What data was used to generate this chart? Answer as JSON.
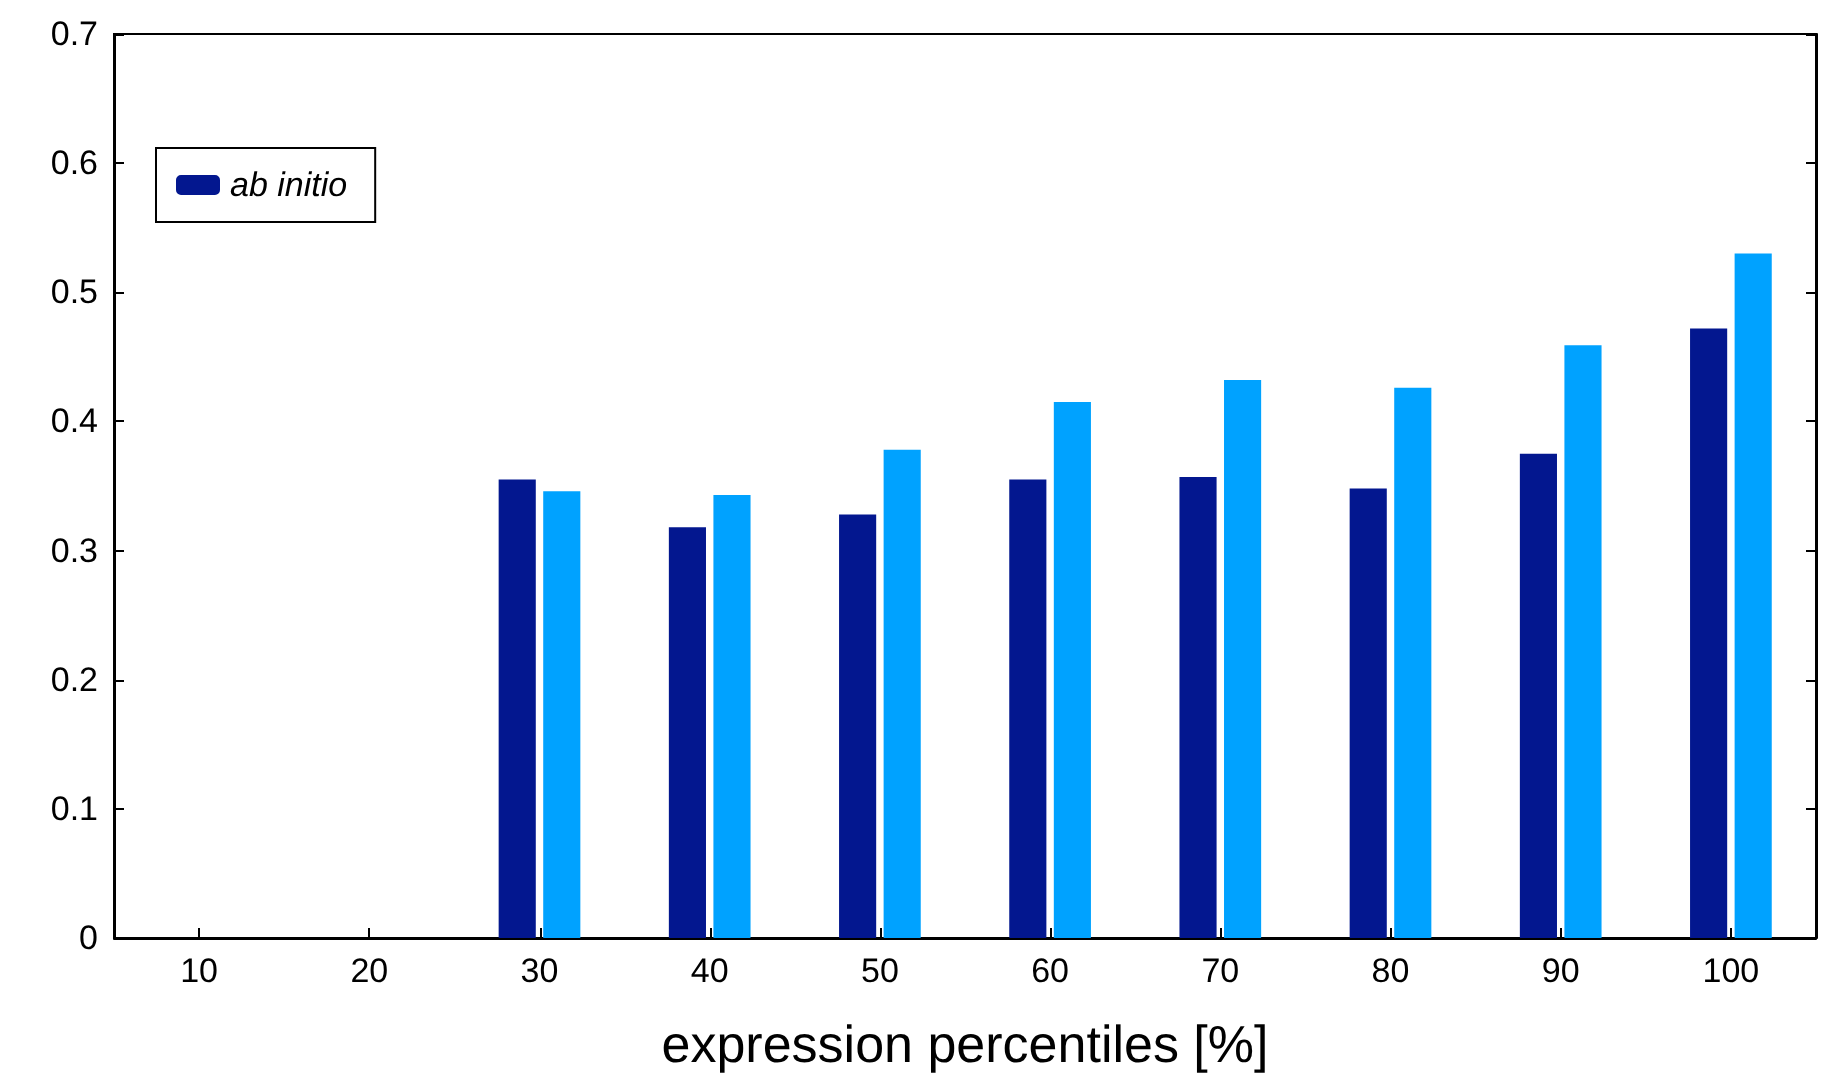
{
  "chart_data": {
    "type": "bar",
    "xlabel": "expression percentiles [%]",
    "categories": [
      "10",
      "20",
      "30",
      "40",
      "50",
      "60",
      "70",
      "80",
      "90",
      "100"
    ],
    "series": [
      {
        "name": "ab initio",
        "color": "#03178f",
        "values": [
          0,
          0,
          0.355,
          0.318,
          0.328,
          0.355,
          0.357,
          0.348,
          0.375,
          0.472
        ]
      },
      {
        "color": "#00a2ff",
        "values": [
          0,
          0,
          0.346,
          0.343,
          0.378,
          0.415,
          0.432,
          0.426,
          0.459,
          0.53
        ]
      }
    ],
    "ylim": [
      0,
      0.7
    ],
    "yticks": [
      0,
      0.1,
      0.2,
      0.3,
      0.4,
      0.5,
      0.6,
      0.7
    ],
    "grid": false,
    "legend": "top left"
  }
}
